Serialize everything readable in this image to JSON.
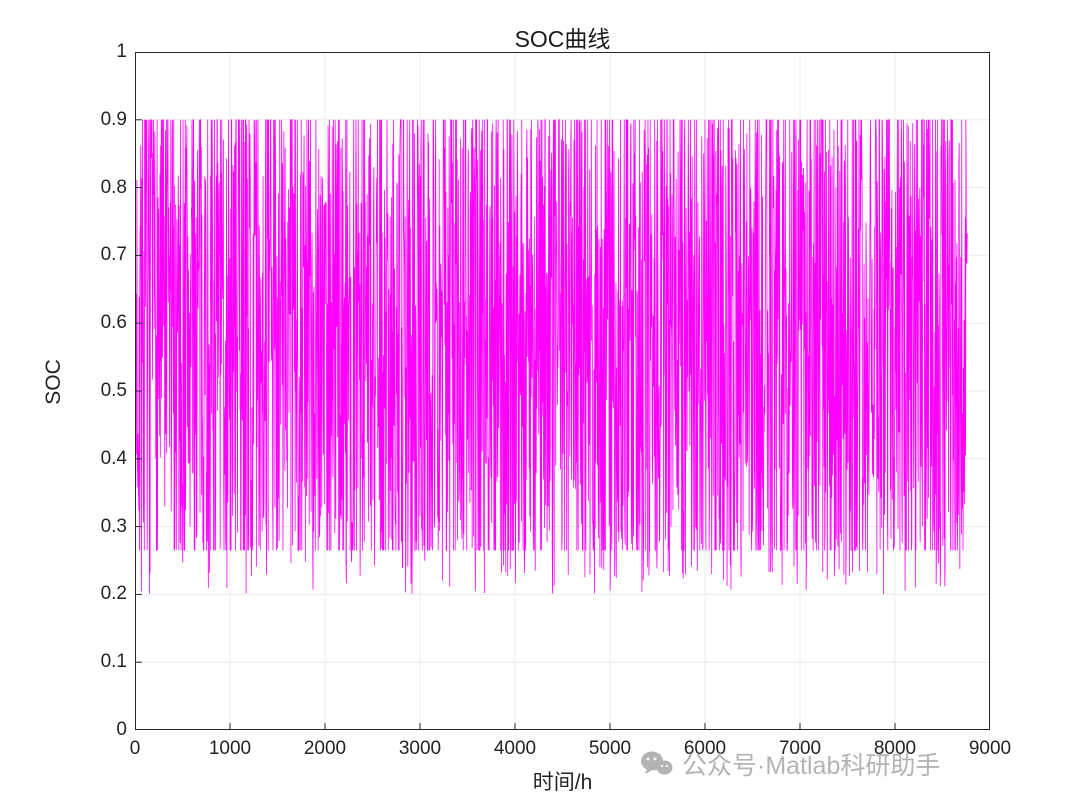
{
  "chart_data": {
    "type": "line",
    "title": "SOC曲线",
    "xlabel": "时间/h",
    "ylabel": "SOC",
    "xlim": [
      0,
      9000
    ],
    "ylim": [
      0,
      1
    ],
    "x_ticks": [
      0,
      1000,
      2000,
      3000,
      4000,
      5000,
      6000,
      7000,
      8000,
      9000
    ],
    "y_ticks": [
      0,
      0.1,
      0.2,
      0.3,
      0.4,
      0.5,
      0.6,
      0.7,
      0.8,
      0.9,
      1
    ],
    "grid": true,
    "legend": "none",
    "series": [
      {
        "name": "SOC",
        "color": "#FF00FF",
        "description": "Hourly battery state-of-charge oscillating rapidly and randomly between about 0.2 and 0.9 over one year (0 to 8760 h); dense lower envelope near 0.265 with occasional dips to 0.2, upper envelope clipped at 0.9",
        "x_start": 0,
        "x_end": 8760,
        "y_min": 0.2,
        "y_max": 0.9,
        "baseline": 0.265,
        "generator": {
          "seed": 7,
          "points": 2600,
          "raw_min": 0.2,
          "raw_max": 1.0,
          "clamp_min": 0.265,
          "clamp_max": 0.9,
          "dip_prob": 0.035,
          "dip_floor": 0.2,
          "dip_range": 0.05
        }
      }
    ],
    "colors": {
      "line": "#FF00FF",
      "grid": "#ececec",
      "axis_box": "#262626",
      "tick_text": "#242424",
      "title_text": "#1a1a1a"
    }
  },
  "watermark": {
    "text": "公众号·Matlab科研助手",
    "icon": "wechat-icon",
    "color": "#b3b3b3"
  }
}
